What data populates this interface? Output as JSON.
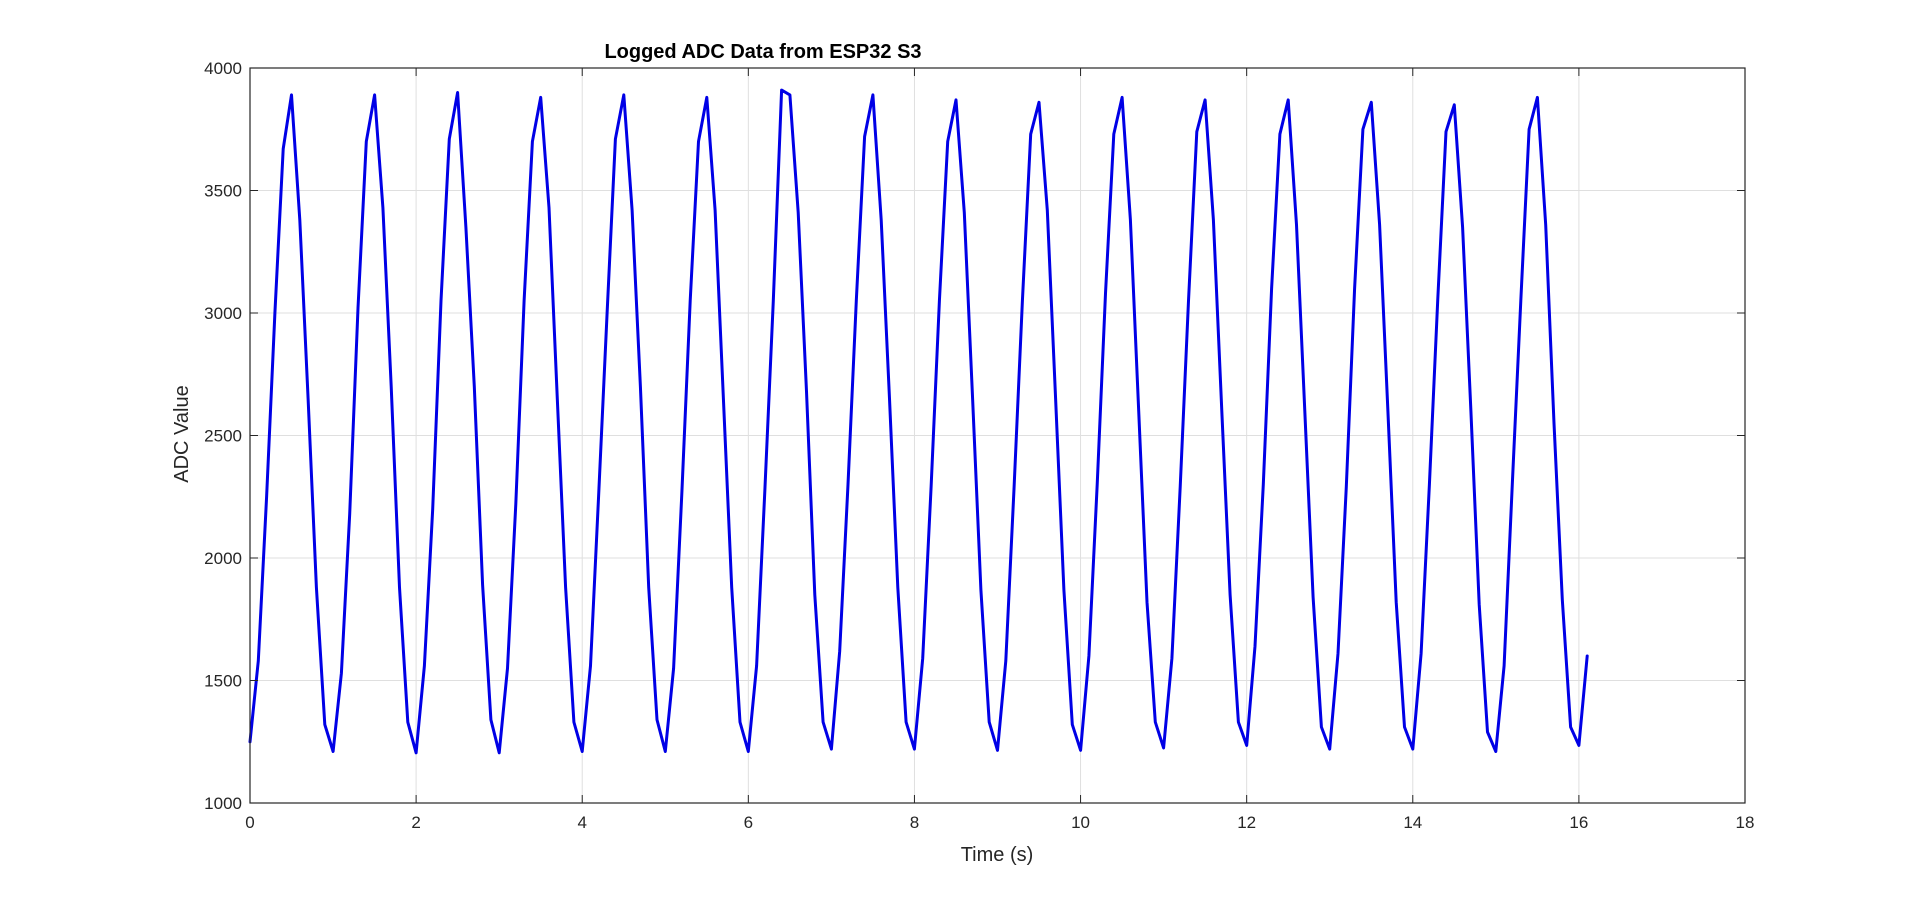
{
  "chart_data": {
    "type": "line",
    "title": "Logged ADC Data from ESP32 S3",
    "xlabel": "Time (s)",
    "ylabel": "ADC Value",
    "xlim": [
      0,
      18
    ],
    "ylim": [
      1000,
      4000
    ],
    "x_ticks": [
      "0",
      "2",
      "4",
      "6",
      "8",
      "10",
      "12",
      "14",
      "16",
      "18"
    ],
    "y_ticks": [
      "1000",
      "1500",
      "2000",
      "2500",
      "3000",
      "3500",
      "4000"
    ],
    "grid": true,
    "legend": "none",
    "series": [
      {
        "color": "#0000e6",
        "x": [
          0.0,
          0.1,
          0.2,
          0.3,
          0.4,
          0.5,
          0.6,
          0.7,
          0.8,
          0.9,
          1.0,
          1.1,
          1.2,
          1.3,
          1.4,
          1.5,
          1.6,
          1.7,
          1.8,
          1.9,
          2.0,
          2.1,
          2.2,
          2.3,
          2.4,
          2.5,
          2.6,
          2.7,
          2.8,
          2.9,
          3.0,
          3.1,
          3.2,
          3.3,
          3.4,
          3.5,
          3.6,
          3.7,
          3.8,
          3.9,
          4.0,
          4.1,
          4.2,
          4.3,
          4.4,
          4.5,
          4.6,
          4.7,
          4.8,
          4.9,
          5.0,
          5.1,
          5.2,
          5.3,
          5.4,
          5.5,
          5.6,
          5.7,
          5.8,
          5.9,
          6.0,
          6.1,
          6.2,
          6.3,
          6.4,
          6.5,
          6.6,
          6.7,
          6.8,
          6.9,
          7.0,
          7.1,
          7.2,
          7.3,
          7.4,
          7.5,
          7.6,
          7.7,
          7.8,
          7.9,
          8.0,
          8.1,
          8.2,
          8.3,
          8.4,
          8.5,
          8.6,
          8.7,
          8.8,
          8.9,
          9.0,
          9.1,
          9.2,
          9.3,
          9.4,
          9.5,
          9.6,
          9.7,
          9.8,
          9.9,
          10.0,
          10.1,
          10.2,
          10.3,
          10.4,
          10.5,
          10.6,
          10.7,
          10.8,
          10.9,
          11.0,
          11.1,
          11.2,
          11.3,
          11.4,
          11.5,
          11.6,
          11.7,
          11.8,
          11.9,
          12.0,
          12.1,
          12.2,
          12.3,
          12.4,
          12.5,
          12.6,
          12.7,
          12.8,
          12.9,
          13.0,
          13.1,
          13.2,
          13.3,
          13.4,
          13.5,
          13.6,
          13.7,
          13.8,
          13.9,
          14.0,
          14.1,
          14.2,
          14.3,
          14.4,
          14.5,
          14.6,
          14.7,
          14.8,
          14.9,
          15.0,
          15.1,
          15.2,
          15.3,
          15.4,
          15.5,
          15.6,
          15.7,
          15.8,
          15.9,
          16.0,
          16.1
        ],
        "y": [
          1250,
          1580,
          2250,
          3000,
          3670,
          3890,
          3380,
          2650,
          1880,
          1320,
          1210,
          1530,
          2180,
          3020,
          3700,
          3890,
          3430,
          2700,
          1880,
          1330,
          1205,
          1560,
          2200,
          3050,
          3710,
          3900,
          3350,
          2700,
          1890,
          1340,
          1205,
          1550,
          2220,
          3050,
          3700,
          3880,
          3430,
          2650,
          1880,
          1330,
          1210,
          1560,
          2270,
          3000,
          3710,
          3890,
          3420,
          2700,
          1880,
          1340,
          1210,
          1550,
          2270,
          3050,
          3700,
          3880,
          3420,
          2650,
          1880,
          1330,
          1210,
          1560,
          2280,
          3050,
          3910,
          3890,
          3410,
          2680,
          1850,
          1330,
          1220,
          1620,
          2300,
          3050,
          3720,
          3890,
          3380,
          2650,
          1880,
          1330,
          1220,
          1590,
          2290,
          3050,
          3700,
          3870,
          3410,
          2650,
          1870,
          1330,
          1215,
          1580,
          2290,
          3050,
          3730,
          3860,
          3420,
          2650,
          1870,
          1320,
          1215,
          1600,
          2300,
          3080,
          3730,
          3880,
          3380,
          2600,
          1820,
          1330,
          1225,
          1590,
          2290,
          3050,
          3740,
          3870,
          3380,
          2600,
          1850,
          1330,
          1235,
          1640,
          2300,
          3100,
          3730,
          3870,
          3360,
          2600,
          1840,
          1310,
          1220,
          1610,
          2290,
          3100,
          3750,
          3860,
          3360,
          2600,
          1820,
          1310,
          1220,
          1610,
          2300,
          3050,
          3740,
          3850,
          3350,
          2600,
          1810,
          1290,
          1210,
          1560,
          2310,
          3050,
          3750,
          3880,
          3360,
          2550,
          1830,
          1310,
          1235,
          1600
        ]
      }
    ]
  }
}
